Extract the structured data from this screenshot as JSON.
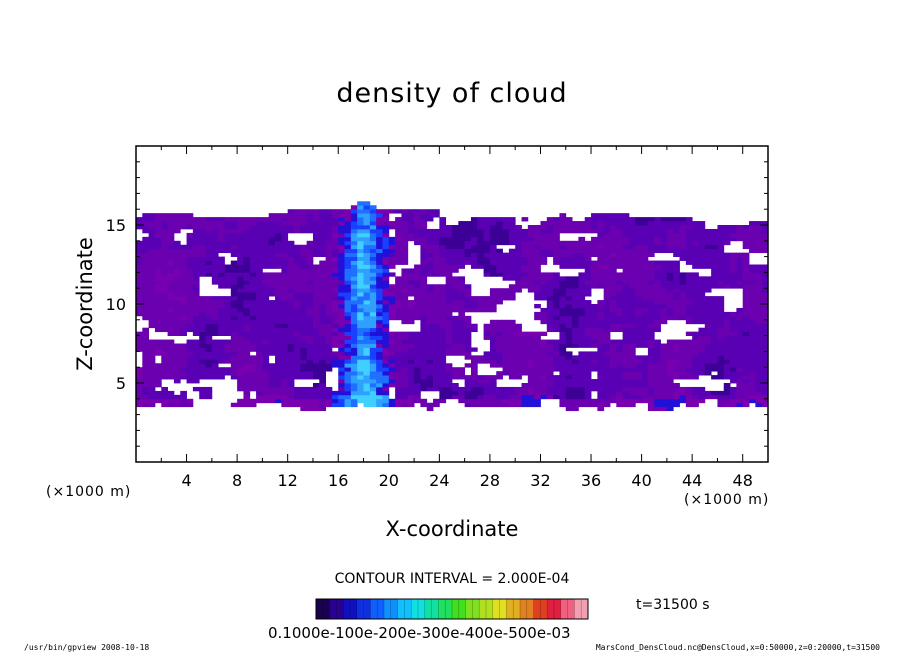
{
  "chart_data": {
    "type": "heatmap",
    "title": "density of cloud",
    "xlabel": "X-coordinate",
    "ylabel": "Z-coordinate",
    "x_unit": "(×1000 m)",
    "x_unit_right": "(×1000 m)",
    "xlim": [
      0,
      50
    ],
    "ylim": [
      0,
      20
    ],
    "x_ticks": [
      "4",
      "8",
      "12",
      "16",
      "20",
      "24",
      "28",
      "32",
      "36",
      "40",
      "44",
      "48"
    ],
    "y_ticks": [
      "5",
      "10",
      "15"
    ],
    "contour_interval": "CONTOUR INTERVAL = 2.000E-04",
    "time_label": "t=31500 s",
    "colorbar_labels": "0.1000e-100e-200e-300e-400e-500e-03",
    "cloud_layer_z": [
      3.5,
      15.5
    ],
    "plume_x_center": 18,
    "plume_z_top": 16.5,
    "dominant_color": "#6a00b0",
    "plume_color": "#1a40ff",
    "footer_left": "/usr/bin/gpview  2008-10-18",
    "footer_right": "MarsCond_DensCloud.nc@DensCloud,x=0:50000,z=0:20000,t=31500"
  }
}
